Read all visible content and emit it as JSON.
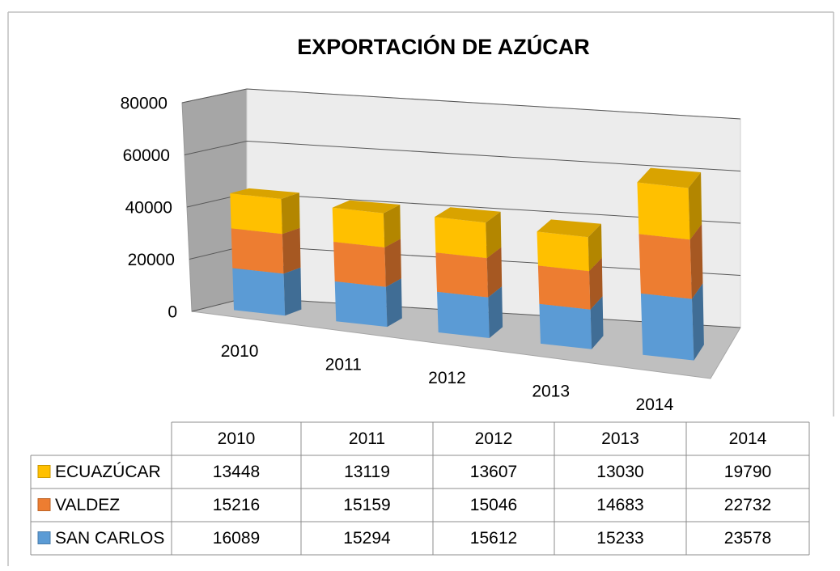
{
  "chart_data": {
    "type": "bar3d_stacked",
    "title": "EXPORTACIÓN DE AZÚCAR",
    "categories": [
      "2010",
      "2011",
      "2012",
      "2013",
      "2014"
    ],
    "series": [
      {
        "name": "SAN CARLOS",
        "color": "#5b9bd5",
        "values": [
          16089,
          15294,
          15612,
          15233,
          23578
        ]
      },
      {
        "name": "VALDEZ",
        "color": "#ed7d31",
        "values": [
          15216,
          15159,
          15046,
          14683,
          22732
        ]
      },
      {
        "name": "ECUAZÚCAR",
        "color": "#ffc000",
        "values": [
          13448,
          13119,
          13607,
          13030,
          19790
        ]
      }
    ],
    "ylim": [
      0,
      80000
    ],
    "yticks": [
      0,
      20000,
      40000,
      60000,
      80000
    ],
    "grid": true,
    "data_table": true
  }
}
